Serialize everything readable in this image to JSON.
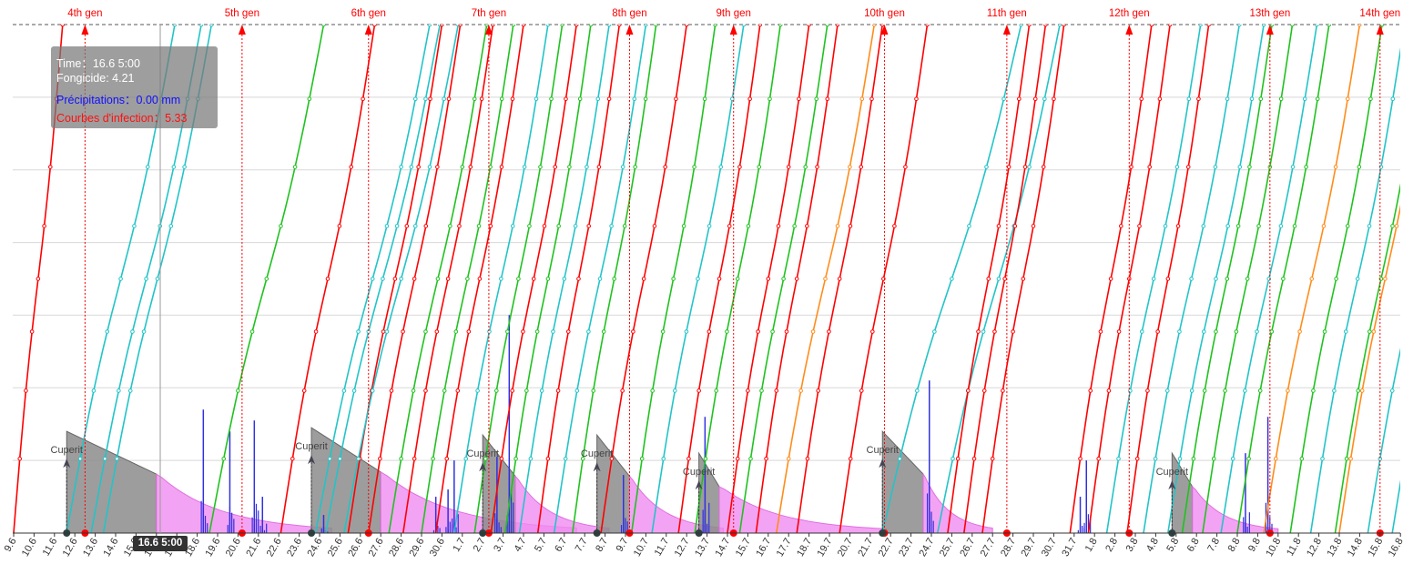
{
  "tooltip": {
    "time_label": "Time：",
    "time_value": "16.6 5:00",
    "fungicide": "Fongicide: 4.21",
    "precip": "Précipitations：0.00 mm",
    "infection": "Courbes d'infection：5.33"
  },
  "cursor_label": "16.6 5:00",
  "colors": {
    "red": "#ff0000",
    "cyan": "#22c4c8",
    "green": "#1fc21f",
    "orange": "#ff8c1a",
    "pink": "#f08cf0",
    "precip_bars": "#3030e0",
    "gray": "#8c8c8c",
    "tooltip_bg": "#787878"
  },
  "chart_data": {
    "type": "line",
    "x_tick_labels": [
      "9.6",
      "10.6",
      "11.6",
      "12.6",
      "13.6",
      "14.6",
      "15.6",
      "16.6",
      "17.6",
      "18.6",
      "19.6",
      "20.6",
      "21.6",
      "22.6",
      "23.6",
      "24.6",
      "25.6",
      "26.6",
      "27.6",
      "28.6",
      "29.6",
      "30.6",
      "1.7",
      "2.7",
      "3.7",
      "4.7",
      "5.7",
      "6.7",
      "7.7",
      "8.7",
      "9.7",
      "10.7",
      "11.7",
      "12.7",
      "13.7",
      "14.7",
      "15.7",
      "16.7",
      "17.7",
      "18.7",
      "19.7",
      "20.7",
      "21.7",
      "22.7",
      "23.7",
      "24.7",
      "25.7",
      "26.7",
      "27.7",
      "28.7",
      "29.7",
      "30.7",
      "31.7",
      "1.8",
      "2.8",
      "3.8",
      "4.8",
      "5.8",
      "6.8",
      "7.8",
      "8.8",
      "9.8",
      "10.8",
      "11.8",
      "12.8",
      "13.8",
      "14.8",
      "15.8",
      "16.8"
    ],
    "generations": [
      {
        "label": "4th gen",
        "day": 3.5
      },
      {
        "label": "5th gen",
        "day": 11.2
      },
      {
        "label": "6th gen",
        "day": 17.4
      },
      {
        "label": "7th gen",
        "day": 23.3
      },
      {
        "label": "8th gen",
        "day": 30.2
      },
      {
        "label": "9th gen",
        "day": 35.3
      },
      {
        "label": "10th gen",
        "day": 42.7
      },
      {
        "label": "11th gen",
        "day": 48.7
      },
      {
        "label": "12th gen",
        "day": 54.7
      },
      {
        "label": "13th gen",
        "day": 61.6
      },
      {
        "label": "14th gen",
        "day": 67.0
      }
    ],
    "fungicide_applications": [
      {
        "label": "Cuperit",
        "day": 2.6
      },
      {
        "label": "Cuperit",
        "day": 14.6
      },
      {
        "label": "Cuperit",
        "day": 23.0
      },
      {
        "label": "Cuperit",
        "day": 28.6
      },
      {
        "label": "Cuperit",
        "day": 33.6
      },
      {
        "label": "Cuperit",
        "day": 42.6
      },
      {
        "label": "Cuperit",
        "day": 56.8
      }
    ],
    "infection_curves": [
      {
        "color": "red",
        "start_day": 0.0,
        "slope": 2.4
      },
      {
        "color": "red",
        "start_day": -6.3,
        "slope": 1.7
      },
      {
        "color": "cyan",
        "start_day": 2.6,
        "slope": 5.3
      },
      {
        "color": "cyan",
        "start_day": 3.8,
        "slope": 5.4
      },
      {
        "color": "cyan",
        "start_day": 4.4,
        "slope": 5.3
      },
      {
        "color": "green",
        "start_day": 9.6,
        "slope": 5.6
      },
      {
        "color": "red",
        "start_day": 13.1,
        "slope": 4.6
      },
      {
        "color": "cyan",
        "start_day": 14.8,
        "slope": 5.6
      },
      {
        "color": "cyan",
        "start_day": 15.3,
        "slope": 5.6
      },
      {
        "color": "red",
        "start_day": 16.4,
        "slope": 4.6
      },
      {
        "color": "cyan",
        "start_day": 16.2,
        "slope": 5.6
      },
      {
        "color": "red",
        "start_day": 17.4,
        "slope": 4.5
      },
      {
        "color": "green",
        "start_day": 18.4,
        "slope": 4.8
      },
      {
        "color": "red",
        "start_day": 19.1,
        "slope": 4.4
      },
      {
        "color": "green",
        "start_day": 20.0,
        "slope": 4.5
      },
      {
        "color": "red",
        "start_day": 20.7,
        "slope": 4.3
      },
      {
        "color": "cyan",
        "start_day": 21.6,
        "slope": 4.6
      },
      {
        "color": "green",
        "start_day": 22.6,
        "slope": 4.3
      },
      {
        "color": "red",
        "start_day": 23.4,
        "slope": 4.2
      },
      {
        "color": "green",
        "start_day": 24.1,
        "slope": 4.2
      },
      {
        "color": "cyan",
        "start_day": 24.8,
        "slope": 4.4
      },
      {
        "color": "red",
        "start_day": 25.7,
        "slope": 4.0
      },
      {
        "color": "cyan",
        "start_day": 26.5,
        "slope": 4.5
      },
      {
        "color": "green",
        "start_day": 27.4,
        "slope": 4.1
      },
      {
        "color": "red",
        "start_day": 28.8,
        "slope": 4.2
      },
      {
        "color": "green",
        "start_day": 30.3,
        "slope": 4.1
      },
      {
        "color": "cyan",
        "start_day": 31.3,
        "slope": 4.5
      },
      {
        "color": "red",
        "start_day": 32.6,
        "slope": 4.0
      },
      {
        "color": "green",
        "start_day": 33.4,
        "slope": 4.2
      },
      {
        "color": "red",
        "start_day": 35.0,
        "slope": 4.0
      },
      {
        "color": "green",
        "start_day": 35.6,
        "slope": 4.3
      },
      {
        "color": "red",
        "start_day": 36.4,
        "slope": 4.0
      },
      {
        "color": "orange",
        "start_day": 37.4,
        "slope": 4.8
      },
      {
        "color": "red",
        "start_day": 38.4,
        "slope": 4.2
      },
      {
        "color": "red",
        "start_day": 40.5,
        "slope": 4.3
      },
      {
        "color": "cyan",
        "start_day": 42.6,
        "slope": 6.8
      },
      {
        "color": "cyan",
        "start_day": 45.3,
        "slope": 6.0
      },
      {
        "color": "red",
        "start_day": 45.8,
        "slope": 4.0
      },
      {
        "color": "red",
        "start_day": 46.6,
        "slope": 4.0
      },
      {
        "color": "red",
        "start_day": 47.5,
        "slope": 4.0
      },
      {
        "color": "red",
        "start_day": 51.8,
        "slope": 4.0
      },
      {
        "color": "red",
        "start_day": 52.7,
        "slope": 4.0
      },
      {
        "color": "cyan",
        "start_day": 53.6,
        "slope": 4.6
      },
      {
        "color": "red",
        "start_day": 54.6,
        "slope": 4.0
      },
      {
        "color": "cyan",
        "start_day": 55.4,
        "slope": 4.7
      },
      {
        "color": "cyan",
        "start_day": 56.6,
        "slope": 4.7
      },
      {
        "color": "green",
        "start_day": 57.3,
        "slope": 4.4
      },
      {
        "color": "green",
        "start_day": 58.3,
        "slope": 4.4
      },
      {
        "color": "cyan",
        "start_day": 59.2,
        "slope": 4.7
      },
      {
        "color": "green",
        "start_day": 60.0,
        "slope": 4.5
      },
      {
        "color": "orange",
        "start_day": 61.3,
        "slope": 4.7
      },
      {
        "color": "green",
        "start_day": 62.6,
        "slope": 4.5
      },
      {
        "color": "cyan",
        "start_day": 63.6,
        "slope": 4.6
      },
      {
        "color": "green",
        "start_day": 64.8,
        "slope": 4.5
      },
      {
        "color": "orange",
        "start_day": 65.0,
        "slope": 4.5
      },
      {
        "color": "cyan",
        "start_day": 66.4,
        "slope": 4.8
      },
      {
        "color": "cyan",
        "start_day": 67.6,
        "slope": 4.8
      }
    ],
    "fungicide_decay": [
      {
        "start_day": 2.6,
        "gray_days": 4.4,
        "pink_days": 8.6,
        "peak": 1.4
      },
      {
        "start_day": 14.6,
        "gray_days": 3.4,
        "pink_days": 9.6,
        "peak": 1.45
      },
      {
        "start_day": 23.0,
        "gray_days": 1.6,
        "pink_days": 4.6,
        "peak": 1.35
      },
      {
        "start_day": 28.6,
        "gray_days": 1.6,
        "pink_days": 4.6,
        "peak": 1.35
      },
      {
        "start_day": 33.6,
        "gray_days": 1.0,
        "pink_days": 8.2,
        "peak": 1.1
      },
      {
        "start_day": 42.6,
        "gray_days": 2.0,
        "pink_days": 3.4,
        "peak": 1.4
      },
      {
        "start_day": 56.8,
        "gray_days": 1.0,
        "pink_days": 4.2,
        "peak": 1.1
      }
    ],
    "precipitation_peaks": [
      {
        "day": 9.3,
        "value": 1.7
      },
      {
        "day": 10.6,
        "value": 1.4
      },
      {
        "day": 11.8,
        "value": 1.55
      },
      {
        "day": 12.2,
        "value": 0.5
      },
      {
        "day": 15.2,
        "value": 0.25
      },
      {
        "day": 20.7,
        "value": 0.5
      },
      {
        "day": 21.3,
        "value": 0.6
      },
      {
        "day": 21.6,
        "value": 1.0
      },
      {
        "day": 23.7,
        "value": 1.05
      },
      {
        "day": 24.3,
        "value": 3.0
      },
      {
        "day": 29.9,
        "value": 0.8
      },
      {
        "day": 33.9,
        "value": 1.6
      },
      {
        "day": 44.9,
        "value": 2.1
      },
      {
        "day": 52.3,
        "value": 0.5
      },
      {
        "day": 52.6,
        "value": 1.0
      },
      {
        "day": 60.4,
        "value": 1.1
      },
      {
        "day": 61.5,
        "value": 1.6
      }
    ],
    "ylim": [
      0,
      7
    ],
    "grid": true
  }
}
